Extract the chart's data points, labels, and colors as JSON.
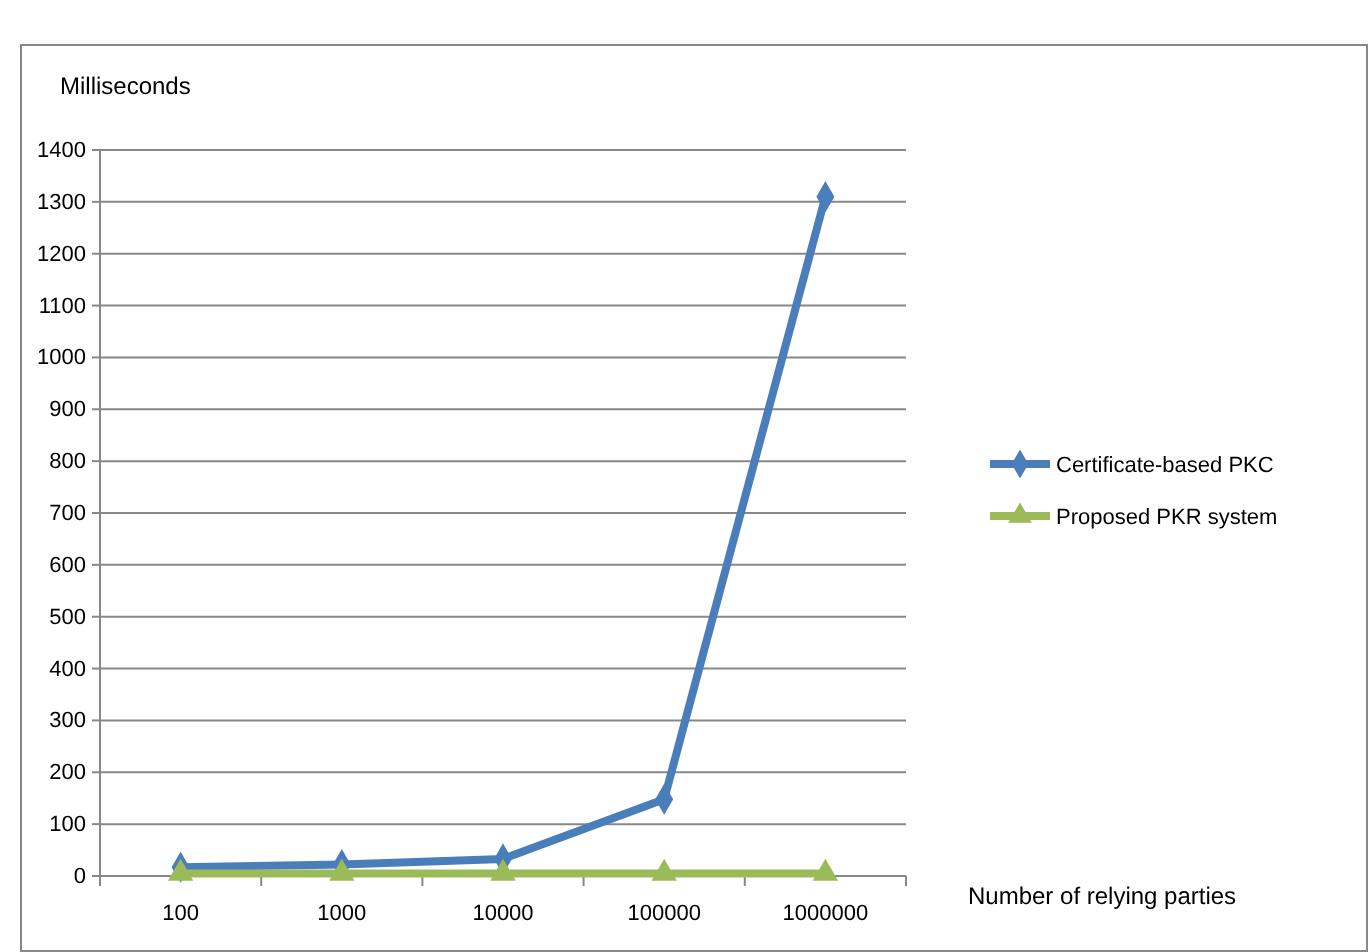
{
  "chart_data": {
    "type": "line",
    "ylabel": "Milliseconds",
    "xlabel": "Number of relying parties",
    "categories": [
      "100",
      "1000",
      "10000",
      "100000",
      "1000000"
    ],
    "series": [
      {
        "name": "Certificate-based PKC",
        "color": "#4a7ebb",
        "marker": "diamond",
        "values": [
          17,
          22,
          33,
          148,
          1310
        ]
      },
      {
        "name": "Proposed PKR system",
        "color": "#9bbb59",
        "marker": "triangle",
        "values": [
          5,
          5,
          5,
          5,
          5
        ]
      }
    ],
    "ylim": [
      0,
      1400
    ],
    "yticks": [
      0,
      100,
      200,
      300,
      400,
      500,
      600,
      700,
      800,
      900,
      1000,
      1100,
      1200,
      1300,
      1400
    ],
    "grid": "y",
    "legend": "right",
    "line_style": "solid"
  }
}
